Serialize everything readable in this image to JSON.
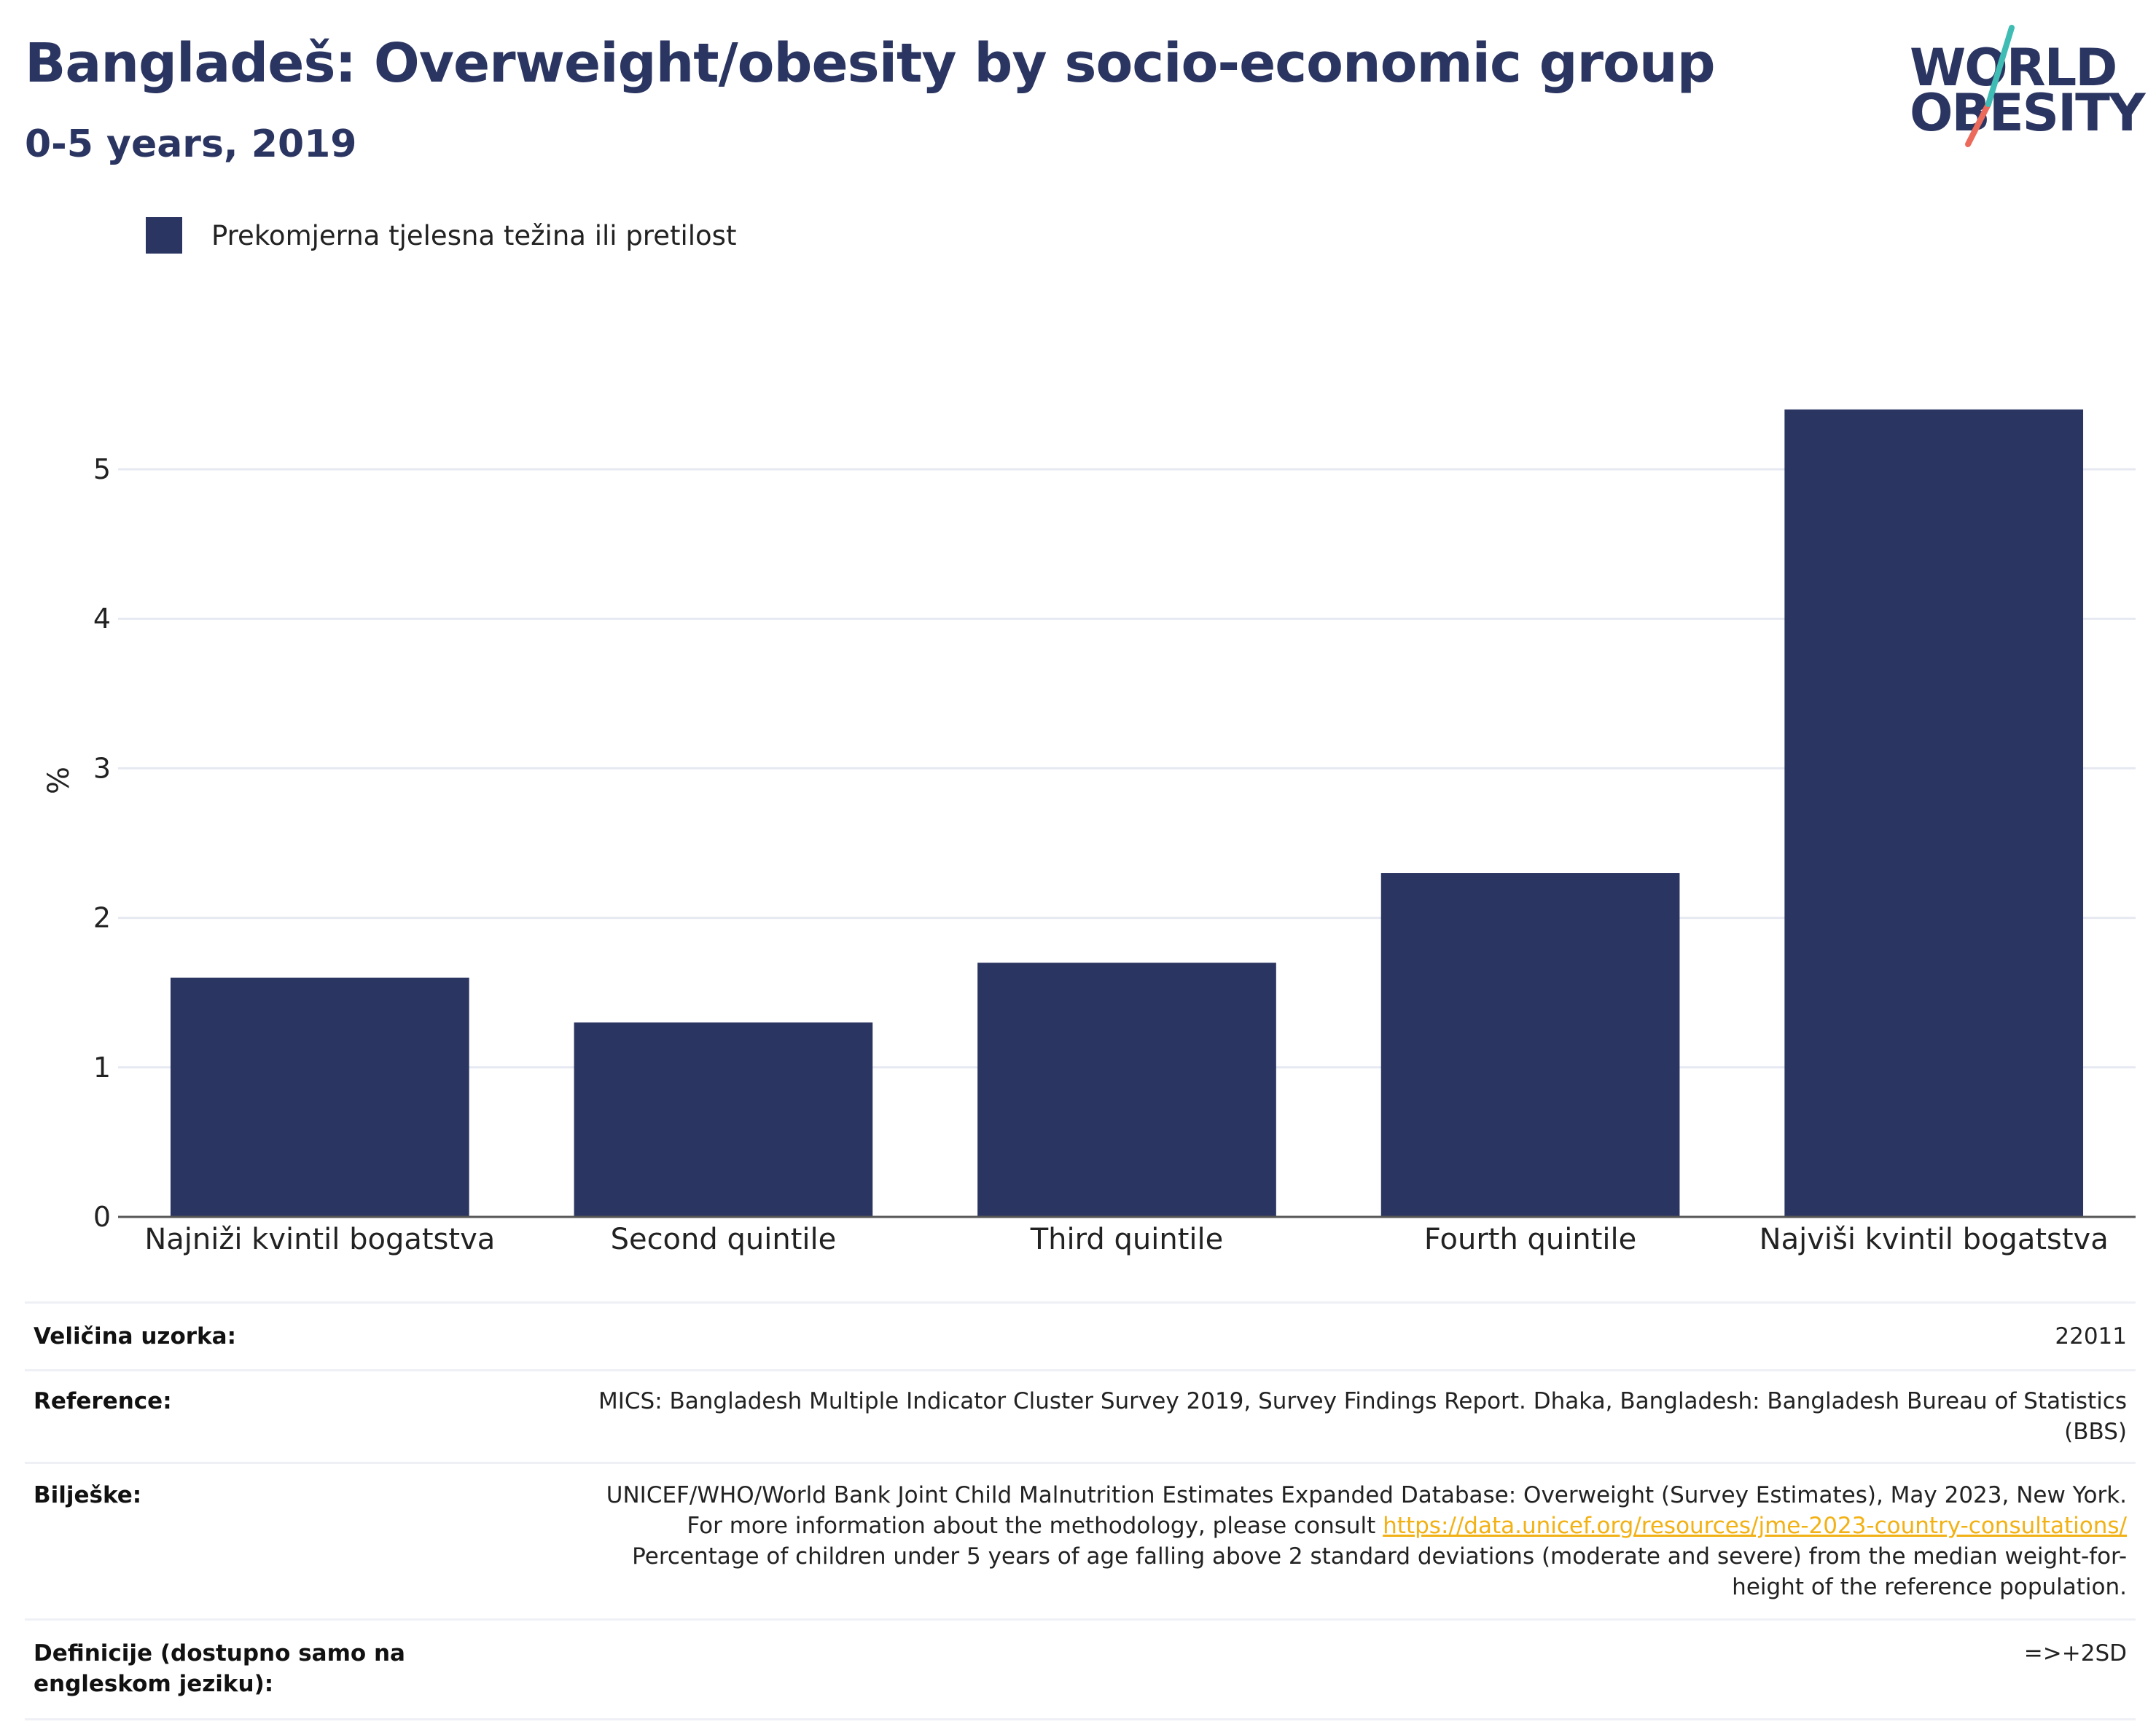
{
  "header": {
    "title": "Bangladeš: Overweight/obesity by socio-economic group",
    "subtitle": "0-5 years, 2019"
  },
  "logo": {
    "line1": "WORLD",
    "line2": "OBESITY",
    "accent_teal": "#3fbcb4",
    "accent_red": "#ec6a5c"
  },
  "colors": {
    "bar": "#2b3561",
    "grid": "#e6e9f1",
    "axis": "#555555",
    "title": "#2b3561",
    "link": "#f2b114"
  },
  "legend": {
    "label": "Prekomjerna tjelesna težina ili pretilost"
  },
  "chart_data": {
    "type": "bar",
    "title": "Bangladeš: Overweight/obesity by socio-economic group",
    "subtitle": "0-5 years, 2019",
    "categories": [
      "Najniži kvintil bogatstva",
      "Second quintile",
      "Third quintile",
      "Fourth quintile",
      "Najviši kvintil bogatstva"
    ],
    "series": [
      {
        "name": "Prekomjerna tjelesna težina ili pretilost",
        "values": [
          1.6,
          1.3,
          1.7,
          2.3,
          5.4
        ]
      }
    ],
    "xlabel": "",
    "ylabel": "%",
    "ylim": [
      0,
      5.6
    ],
    "yticks": [
      0,
      1,
      2,
      3,
      4,
      5
    ],
    "grid": true,
    "legend_position": "top-left"
  },
  "info": {
    "sample_label": "Veličina uzorka:",
    "sample_value": "22011",
    "reference_label": "Reference:",
    "reference_value": "MICS: Bangladesh Multiple Indicator Cluster Survey 2019, Survey Findings Report. Dhaka, Bangladesh: Bangladesh Bureau of Statistics (BBS)",
    "notes_label": "Bilješke:",
    "notes_text1": "UNICEF/WHO/World Bank Joint Child Malnutrition Estimates Expanded Database: Overweight (Survey Estimates), May 2023, New York. For more information about the methodology, please consult ",
    "notes_link": "https://data.unicef.org/resources/jme-2023-country-consultations/",
    "notes_text2": " Percentage of children under 5 years of age falling above 2 standard deviations (moderate and severe) from the median weight-for-height of the reference population.",
    "definitions_label": "Definicije (dostupno samo na engleskom jeziku):",
    "definitions_value": "=>+2SD"
  }
}
